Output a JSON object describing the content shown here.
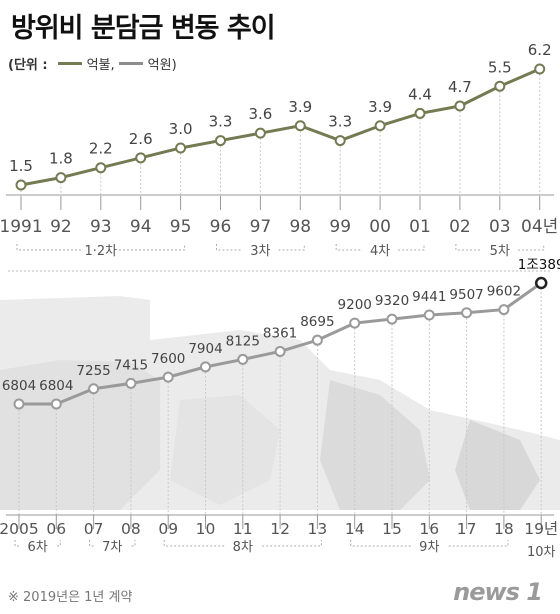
{
  "title": "방위비 분담금 변동 추이",
  "legend": {
    "unit": "(단위 :",
    "items": [
      {
        "label": "억불,",
        "color": "#747a52"
      },
      {
        "label": "억원)",
        "color": "#8c8c8c"
      }
    ]
  },
  "chart_data": [
    {
      "type": "line",
      "x": [
        "1991",
        "92",
        "93",
        "94",
        "95",
        "96",
        "97",
        "98",
        "99",
        "00",
        "01",
        "02",
        "03",
        "04년"
      ],
      "values": [
        1.5,
        1.8,
        2.2,
        2.6,
        3.0,
        3.3,
        3.6,
        3.9,
        3.3,
        3.9,
        4.4,
        4.7,
        5.5,
        6.2
      ],
      "value_labels": [
        "1.5",
        "1.8",
        "2.2",
        "2.6",
        "3.0",
        "3.3",
        "3.6",
        "3.9",
        "3.3",
        "3.9",
        "4.4",
        "4.7",
        "5.5",
        "6.2"
      ],
      "color": "#747a52",
      "groups": [
        {
          "label": "1·2차",
          "from": 0,
          "to": 4
        },
        {
          "label": "3차",
          "from": 5,
          "to": 7
        },
        {
          "label": "4차",
          "from": 8,
          "to": 10
        },
        {
          "label": "5차",
          "from": 11,
          "to": 13
        }
      ]
    },
    {
      "type": "line",
      "x": [
        "2005",
        "06",
        "07",
        "08",
        "09",
        "10",
        "11",
        "12",
        "13",
        "14",
        "15",
        "16",
        "17",
        "18",
        "19년"
      ],
      "values": [
        6804,
        6804,
        7255,
        7415,
        7600,
        7904,
        8125,
        8361,
        8695,
        9200,
        9320,
        9441,
        9507,
        9602,
        10389
      ],
      "value_labels": [
        "6804",
        "6804",
        "7255",
        "7415",
        "7600",
        "7904",
        "8125",
        "8361",
        "8695",
        "9200",
        "9320",
        "9441",
        "9507",
        "9602",
        "1조389"
      ],
      "color": "#9a9a9a",
      "groups": [
        {
          "label": "6차",
          "from": 0,
          "to": 1
        },
        {
          "label": "7차",
          "from": 2,
          "to": 3
        },
        {
          "label": "8차",
          "from": 4,
          "to": 8
        },
        {
          "label": "9차",
          "from": 9,
          "to": 13
        },
        {
          "label": "10차",
          "from": 14,
          "to": 14
        }
      ]
    }
  ],
  "footnote": "※ 2019년은 1년 계약",
  "logo": "news 1"
}
